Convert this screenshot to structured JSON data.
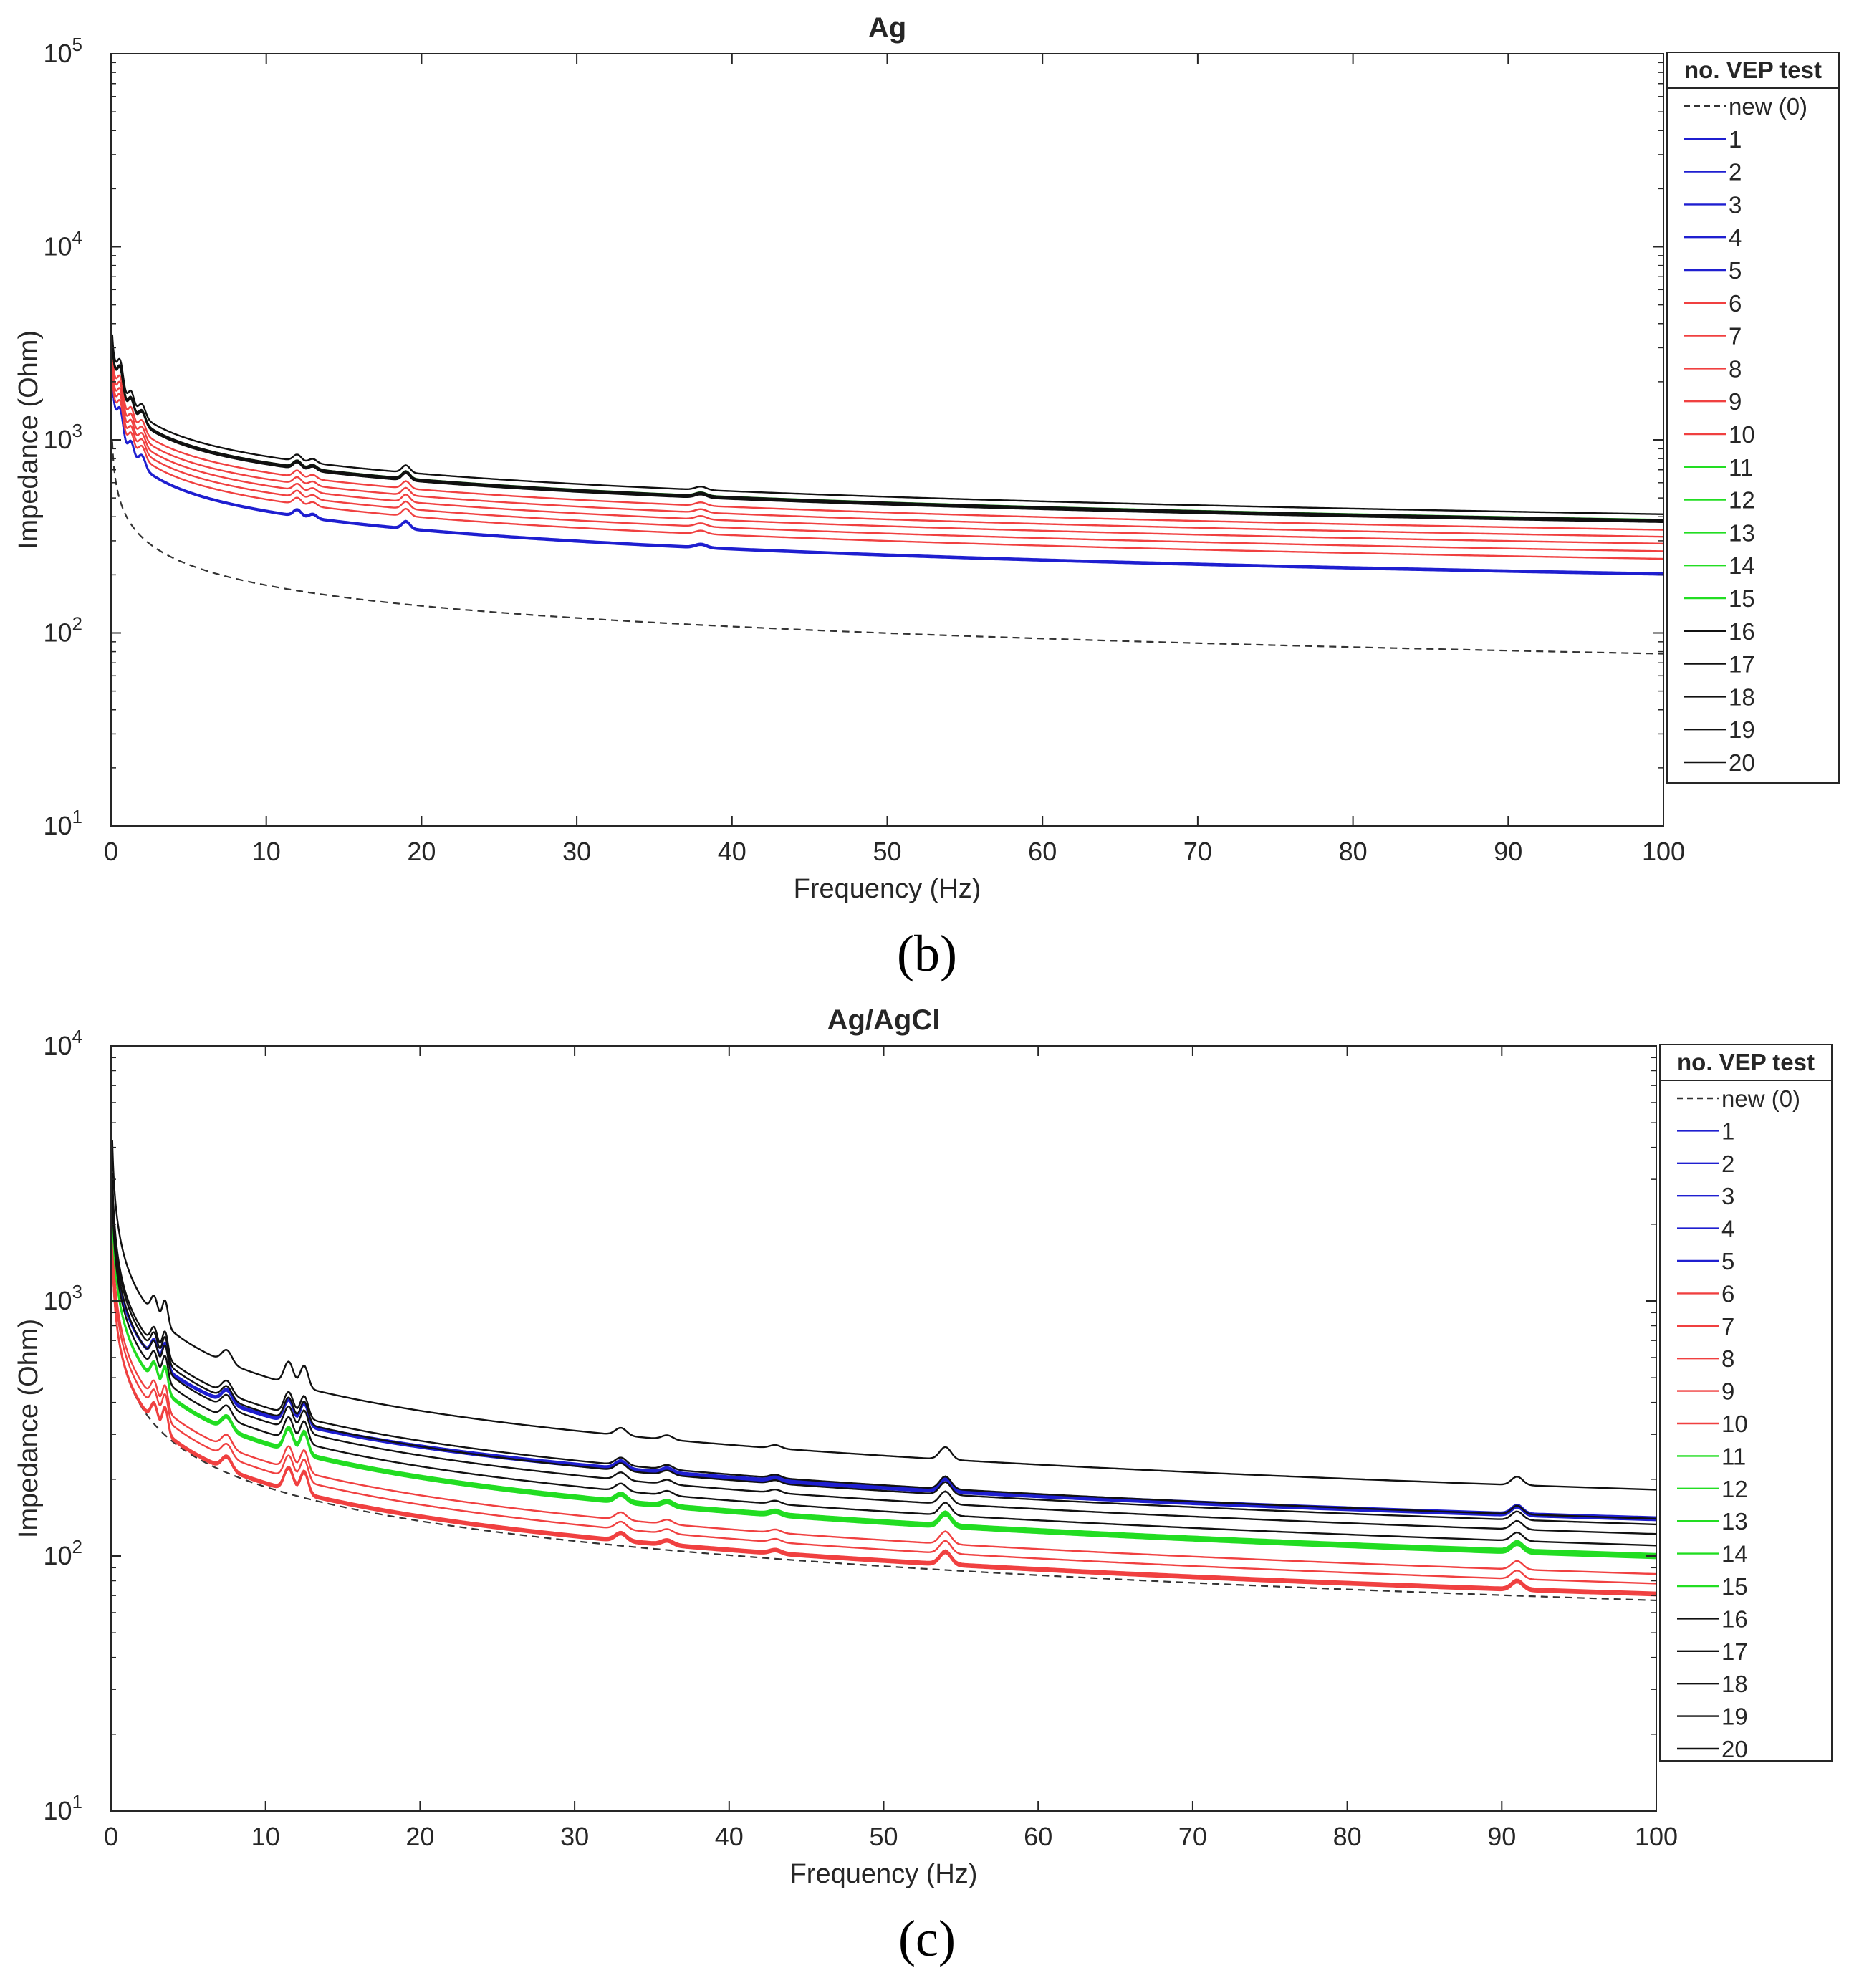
{
  "chart_data": [
    {
      "type": "line",
      "title": "Ag",
      "xlabel": "Frequency  (Hz)",
      "ylabel": "Impedance  (Ohm)",
      "xlim": [
        0,
        100
      ],
      "ylim": [
        10,
        100000
      ],
      "yscale": "log",
      "x_ticks": [
        "0",
        "10",
        "20",
        "30",
        "40",
        "50",
        "60",
        "70",
        "80",
        "90",
        "100"
      ],
      "y_ticks": [
        {
          "base": "10",
          "exp": "1"
        },
        {
          "base": "10",
          "exp": "2"
        },
        {
          "base": "10",
          "exp": "3"
        },
        {
          "base": "10",
          "exp": "4"
        },
        {
          "base": "10",
          "exp": "5"
        }
      ],
      "legend_title": "no. VEP test",
      "legend_position": "outside-right",
      "caption": "(b)",
      "colors": {
        "new": "#333333",
        "blue": "#1f1fd0",
        "red": "#f04040",
        "green": "#22dd22",
        "black": "#111111"
      },
      "series": [
        {
          "name": "new (0)",
          "group": "new",
          "z1": 400,
          "z100": 78
        },
        {
          "name": "1",
          "group": "blue",
          "z1": 900,
          "z100": 200
        },
        {
          "name": "2",
          "group": "blue",
          "z1": 902,
          "z100": 201
        },
        {
          "name": "3",
          "group": "blue",
          "z1": 905,
          "z100": 202
        },
        {
          "name": "4",
          "group": "blue",
          "z1": 907,
          "z100": 203
        },
        {
          "name": "5",
          "group": "blue",
          "z1": 910,
          "z100": 204
        },
        {
          "name": "6",
          "group": "red",
          "z1": 1000,
          "z100": 242
        },
        {
          "name": "7",
          "group": "red",
          "z1": 1080,
          "z100": 265
        },
        {
          "name": "8",
          "group": "red",
          "z1": 1160,
          "z100": 290
        },
        {
          "name": "9",
          "group": "red",
          "z1": 1250,
          "z100": 315
        },
        {
          "name": "10",
          "group": "red",
          "z1": 1350,
          "z100": 342
        },
        {
          "name": "11",
          "group": "green",
          "z1": 1500,
          "z100": 378
        },
        {
          "name": "12",
          "group": "green",
          "z1": 1505,
          "z100": 380
        },
        {
          "name": "13",
          "group": "green",
          "z1": 1510,
          "z100": 382
        },
        {
          "name": "14",
          "group": "green",
          "z1": 1515,
          "z100": 384
        },
        {
          "name": "15",
          "group": "green",
          "z1": 1520,
          "z100": 386
        },
        {
          "name": "16",
          "group": "black",
          "z1": 1490,
          "z100": 375
        },
        {
          "name": "17",
          "group": "black",
          "z1": 1500,
          "z100": 378
        },
        {
          "name": "18",
          "group": "black",
          "z1": 1510,
          "z100": 381
        },
        {
          "name": "19",
          "group": "black",
          "z1": 1525,
          "z100": 385
        },
        {
          "name": "20",
          "group": "black",
          "z1": 1640,
          "z100": 412
        }
      ]
    },
    {
      "type": "line",
      "title": "Ag/AgCl",
      "xlabel": "Frequency  (Hz)",
      "ylabel": "Impedance  (Ohm)",
      "xlim": [
        0,
        100
      ],
      "ylim": [
        10,
        10000
      ],
      "yscale": "log",
      "x_ticks": [
        "0",
        "10",
        "20",
        "30",
        "40",
        "50",
        "60",
        "70",
        "80",
        "90",
        "100"
      ],
      "y_ticks": [
        {
          "base": "10",
          "exp": "1"
        },
        {
          "base": "10",
          "exp": "2"
        },
        {
          "base": "10",
          "exp": "3"
        },
        {
          "base": "10",
          "exp": "4"
        }
      ],
      "legend_title": "no. VEP test",
      "legend_position": "outside-right",
      "caption": "(c)",
      "colors": {
        "new": "#333333",
        "blue": "#1f1fd0",
        "red": "#f04040",
        "green": "#22dd22",
        "black": "#111111"
      },
      "series": [
        {
          "name": "new (0)",
          "group": "new",
          "z1": 520,
          "z100": 67
        },
        {
          "name": "1",
          "group": "blue",
          "z1": 900,
          "z100": 138
        },
        {
          "name": "2",
          "group": "blue",
          "z1": 903,
          "z100": 139
        },
        {
          "name": "3",
          "group": "blue",
          "z1": 906,
          "z100": 140
        },
        {
          "name": "4",
          "group": "blue",
          "z1": 909,
          "z100": 141
        },
        {
          "name": "5",
          "group": "blue",
          "z1": 912,
          "z100": 142
        },
        {
          "name": "6",
          "group": "red",
          "z1": 520,
          "z100": 70
        },
        {
          "name": "7",
          "group": "red",
          "z1": 525,
          "z100": 71
        },
        {
          "name": "8",
          "group": "red",
          "z1": 530,
          "z100": 72
        },
        {
          "name": "9",
          "group": "red",
          "z1": 600,
          "z100": 78
        },
        {
          "name": "10",
          "group": "red",
          "z1": 650,
          "z100": 85
        },
        {
          "name": "11",
          "group": "green",
          "z1": 760,
          "z100": 98
        },
        {
          "name": "12",
          "group": "green",
          "z1": 763,
          "z100": 99
        },
        {
          "name": "13",
          "group": "green",
          "z1": 766,
          "z100": 100
        },
        {
          "name": "14",
          "group": "green",
          "z1": 769,
          "z100": 101
        },
        {
          "name": "15",
          "group": "green",
          "z1": 772,
          "z100": 102
        },
        {
          "name": "16",
          "group": "black",
          "z1": 850,
          "z100": 110
        },
        {
          "name": "17",
          "group": "black",
          "z1": 930,
          "z100": 122
        },
        {
          "name": "18",
          "group": "black",
          "z1": 1000,
          "z100": 133
        },
        {
          "name": "19",
          "group": "black",
          "z1": 1050,
          "z100": 140
        },
        {
          "name": "20",
          "group": "black",
          "z1": 1400,
          "z100": 182
        }
      ]
    }
  ]
}
